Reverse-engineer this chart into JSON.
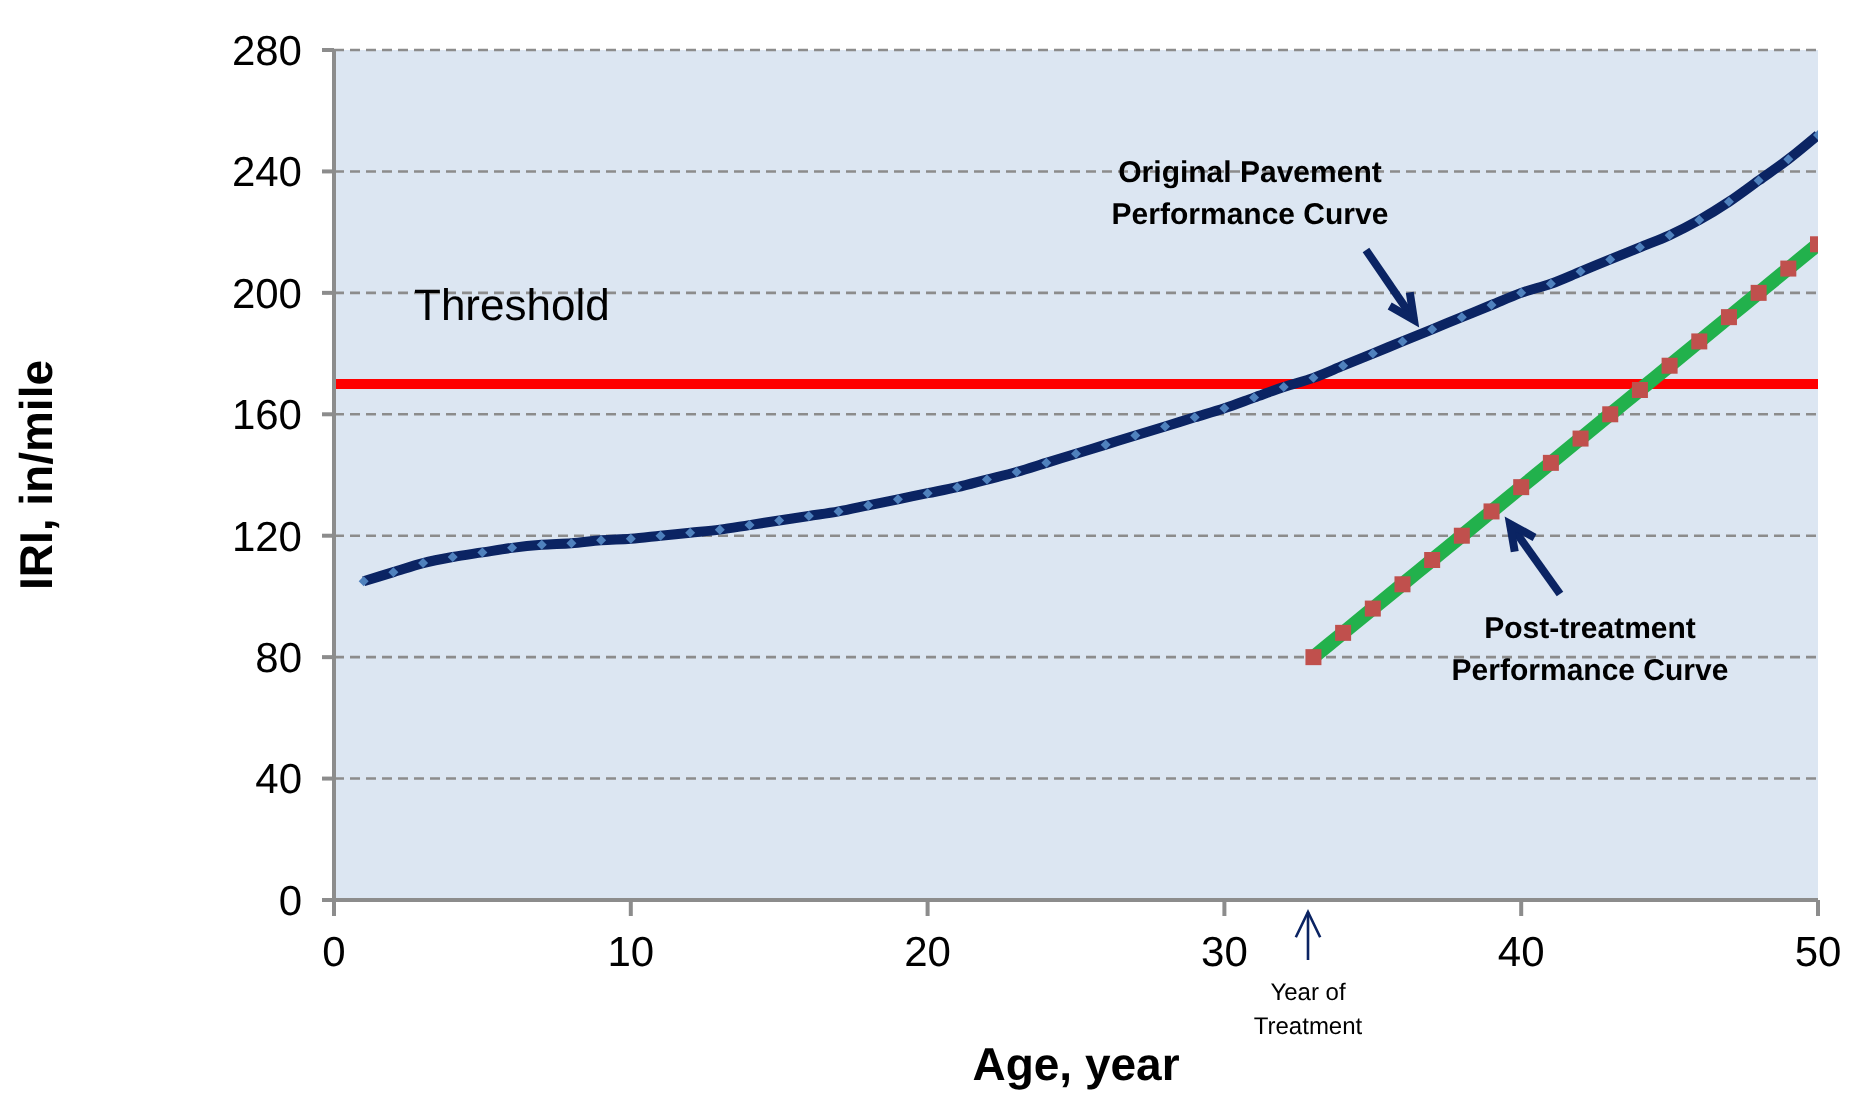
{
  "chart_data": {
    "type": "line",
    "xlabel": "Age, year",
    "ylabel": "IRI, in/mile",
    "xlim": [
      0,
      50
    ],
    "xticks": [
      0,
      10,
      20,
      30,
      40,
      50
    ],
    "ylim": [
      0,
      280
    ],
    "yticks": [
      0,
      40,
      80,
      120,
      160,
      200,
      240,
      280
    ],
    "grid": "y",
    "series": [
      {
        "color": "#0b2463",
        "marker": "diamond",
        "x": [
          1,
          2,
          3,
          4,
          5,
          6,
          7,
          8,
          9,
          10,
          11,
          12,
          13,
          14,
          15,
          16,
          17,
          18,
          19,
          20,
          21,
          22,
          23,
          24,
          25,
          26,
          27,
          28,
          29,
          30,
          31,
          32,
          33,
          34,
          35,
          36,
          37,
          38,
          39,
          40,
          41,
          42,
          43,
          44,
          45,
          46,
          47,
          48,
          49,
          50
        ],
        "values": [
          105,
          108,
          111,
          113,
          114.5,
          116,
          117,
          117.5,
          118.5,
          119,
          120,
          121,
          122,
          123.5,
          125,
          126.5,
          128,
          130,
          132,
          134,
          136,
          138.5,
          141,
          144,
          147,
          150,
          153,
          156,
          159,
          162,
          165.5,
          169,
          172,
          176,
          180,
          184,
          188,
          192,
          196,
          200,
          203,
          207,
          211,
          215,
          219,
          224,
          230,
          237,
          244,
          252
        ]
      },
      {
        "color": "#22b14c",
        "marker": "square",
        "colors": [
          "#c0504d",
          "#c0504d",
          "#c0504d",
          "#c0504d",
          "#c0504d",
          "#c0504d",
          "#c0504d",
          "#c0504d",
          "#c0504d",
          "#c0504d",
          "#c0504d",
          "#c0504d",
          "#c0504d",
          "#c0504d",
          "#c0504d",
          "#c0504d",
          "#c0504d",
          "#c0504d"
        ],
        "x": [
          33,
          34,
          35,
          36,
          37,
          38,
          39,
          40,
          41,
          42,
          43,
          44,
          45,
          46,
          47,
          48,
          49,
          50
        ],
        "values": [
          80,
          88,
          96,
          104,
          112,
          120,
          128,
          136,
          144,
          152,
          160,
          168,
          176,
          184,
          192,
          200,
          208,
          216
        ]
      }
    ],
    "ref_lines": [
      {
        "axis": "y",
        "value": 170,
        "label": "Threshold",
        "color": "#ff0000"
      }
    ],
    "annotations": [
      "Original Pavement\nPerformance Curve",
      "Post-treatment\nPerformance Curve",
      "Year of\nTreatment"
    ]
  }
}
